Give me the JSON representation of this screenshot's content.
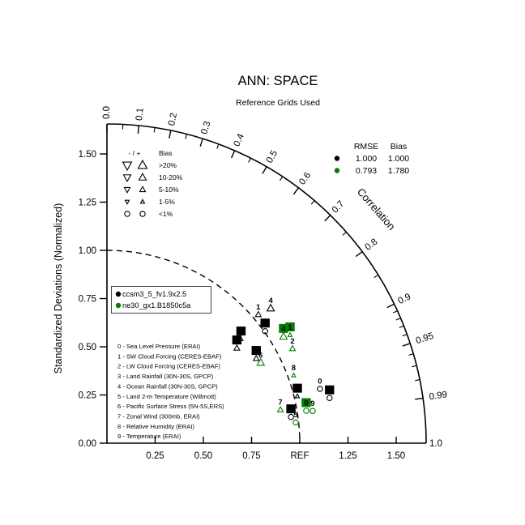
{
  "title": "ANN: SPACE",
  "subtitle": "Reference Grids Used",
  "colors": {
    "model1": "#000000",
    "model2": "#007f00"
  },
  "axis": {
    "y_title": "Standardized Deviations (Normalized)",
    "corr_title": "Correlation",
    "x_tick_labels": [
      "0.25",
      "0.50",
      "0.75",
      "REF",
      "1.25",
      "1.50"
    ],
    "x_tick_values": [
      0.25,
      0.5,
      0.75,
      1.0,
      1.25,
      1.5
    ],
    "y_tick_labels": [
      "0.00",
      "0.25",
      "0.50",
      "0.75",
      "1.00",
      "1.25",
      "1.50"
    ],
    "y_tick_values": [
      0,
      0.25,
      0.5,
      0.75,
      1.0,
      1.25,
      1.5
    ],
    "corr_major_labels": [
      "0.0",
      "0.1",
      "0.2",
      "0.3",
      "0.4",
      "0.5",
      "0.6",
      "0.7",
      "0.8",
      "0.9",
      "0.95",
      "0.99"
    ],
    "corr_major_values": [
      0,
      0.1,
      0.2,
      0.3,
      0.4,
      0.5,
      0.6,
      0.7,
      0.8,
      0.9,
      0.95,
      0.99
    ],
    "corr_minor_values": [
      0.05,
      0.15,
      0.25,
      0.35,
      0.45,
      0.55,
      0.65,
      0.75,
      0.85,
      0.91,
      0.92,
      0.93,
      0.94,
      0.96,
      0.97,
      0.98
    ],
    "corr_end_label": "1.0",
    "ref_radius": 1.0,
    "outer_radius": 1.655
  },
  "bias_legend": {
    "sign_header": "- / +",
    "title": "Bias",
    "rows": [
      {
        "label": ">20%",
        "category": ">20%"
      },
      {
        "label": "10-20%",
        "category": "10-20%"
      },
      {
        "label": "5-10%",
        "category": "5-10%"
      },
      {
        "label": "1-5%",
        "category": "1-5%"
      },
      {
        "label": "<1%",
        "category": "<1%"
      }
    ]
  },
  "stats_legend": {
    "rmse_header": "RMSE",
    "bias_header": "Bias",
    "rows": [
      {
        "color": "#000000",
        "rmse": "1.000",
        "bias": "1.000"
      },
      {
        "color": "#007f00",
        "rmse": "0.793",
        "bias": "1.780"
      }
    ]
  },
  "model_legend": [
    {
      "label": "ccsm3_5_fv1.9x2.5",
      "color": "#000000"
    },
    {
      "label": "ne30_gx1.B1850c5a",
      "color": "#007f00"
    }
  ],
  "variables": [
    "0 - Sea Level Pressure (ERAI)",
    "1 - SW Cloud Forcing (CERES-EBAF)",
    "2 - LW Cloud Forcing (CERES-EBAF)",
    "3 - Land Rainfall (30N-30S, GPCP)",
    "4 - Ocean Rainfall (30N-30S, GPCP)",
    "5 - Land 2-m Temperature (Willmott)",
    "6 - Pacific Surface Stress (5N-5S,ERS)",
    "7 - Zonal Wind (300mb, ERAI)",
    "8 - Relative Humidity (ERAI)",
    "9 - Temperature (ERAI)"
  ],
  "chart_data": {
    "type": "taylor",
    "title": "ANN: SPACE",
    "xlabel_ref": "REF",
    "stddev_range": [
      0,
      1.655
    ],
    "legend_position": "upper-right",
    "series": [
      {
        "name": "ccsm3_5_fv1.9x2.5",
        "color": "#000000",
        "points": [
          {
            "id": "0",
            "stddev": 1.14,
            "corr": 0.969,
            "bias": "<1%",
            "labelStyle": "plain"
          },
          {
            "id": "1",
            "stddev": 1.03,
            "corr": 0.762,
            "bias": "5-10%",
            "labelStyle": "plain"
          },
          {
            "id": "2",
            "stddev": 1.005,
            "corr": 0.816,
            "bias": "<1%",
            "labelStyle": "boxed"
          },
          {
            "id": "3",
            "stddev": 0.88,
            "corr": 0.79,
            "bias": "1-5%",
            "labelStyle": "boxed"
          },
          {
            "id": "4",
            "stddev": 1.1,
            "corr": 0.772,
            "bias": "10-20%",
            "labelStyle": "plain"
          },
          {
            "id": "5",
            "stddev": 0.964,
            "corr": 0.99,
            "bias": "<1%",
            "labelStyle": "boxed"
          },
          {
            "id": "6",
            "stddev": 0.835,
            "corr": 0.807,
            "bias": "5-10%",
            "labelStyle": "boxed"
          },
          {
            "id": "7",
            "stddev": 1.017,
            "corr": 0.971,
            "bias": "1-5%",
            "labelStyle": "boxed"
          },
          {
            "id": "8",
            "stddev": 0.89,
            "corr": 0.87,
            "bias": "5-10%",
            "labelStyle": "boxed"
          },
          {
            "id": "9",
            "stddev": 1.178,
            "corr": 0.98,
            "bias": "<1%",
            "labelStyle": "boxed"
          }
        ]
      },
      {
        "name": "ne30_gx1.B1850c5a",
        "color": "#007f00",
        "points": [
          {
            "id": "0",
            "stddev": 1.047,
            "corr": 0.987,
            "bias": "<1%",
            "labelStyle": "boxed"
          },
          {
            "id": "1",
            "stddev": 1.103,
            "corr": 0.861,
            "bias": "1-5%",
            "labelStyle": "boxed"
          },
          {
            "id": "2",
            "stddev": 1.08,
            "corr": 0.891,
            "bias": "5-10%",
            "labelStyle": "plain"
          },
          {
            "id": "4",
            "stddev": 1.07,
            "corr": 0.856,
            "bias": "10-20%",
            "labelStyle": "boxed"
          },
          {
            "id": "5",
            "stddev": 0.985,
            "corr": 0.994,
            "bias": "<1%",
            "labelStyle": "plain"
          },
          {
            "id": "6",
            "stddev": 0.9,
            "corr": 0.886,
            "bias": "10-20%",
            "labelStyle": "plain"
          },
          {
            "id": "7",
            "stddev": 0.916,
            "corr": 0.982,
            "bias": "5-10%",
            "labelStyle": "plain"
          },
          {
            "id": "8",
            "stddev": 1.03,
            "corr": 0.94,
            "bias": "1-5%",
            "labelStyle": "plain"
          },
          {
            "id": "9",
            "stddev": 1.08,
            "corr": 0.988,
            "bias": "<1%",
            "labelStyle": "plain"
          }
        ]
      }
    ]
  }
}
